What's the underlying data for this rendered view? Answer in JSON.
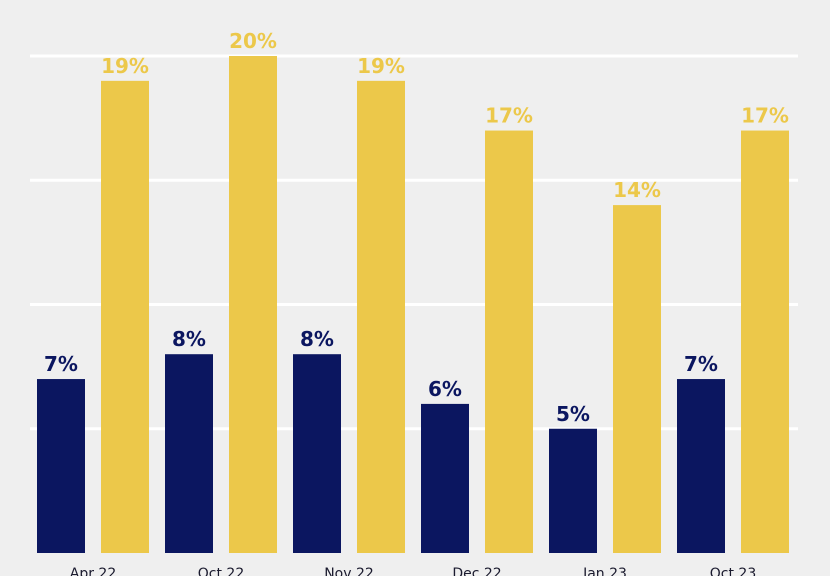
{
  "chart_data": {
    "type": "bar",
    "categories": [
      "Apr 22",
      "Oct 22",
      "Nov 22",
      "Dec 22",
      "Jan 23",
      "Oct 23"
    ],
    "series": [
      {
        "values": [
          7,
          8,
          8,
          6,
          5,
          7
        ],
        "labels": [
          "7%",
          "8%",
          "8%",
          "6%",
          "5%",
          "7%"
        ],
        "color": "#0b1660"
      },
      {
        "values": [
          19,
          20,
          19,
          17,
          14,
          17
        ],
        "labels": [
          "19%",
          "20%",
          "19%",
          "17%",
          "14%",
          "17%"
        ],
        "color": "#ecc84a"
      }
    ],
    "ylim": [
      0,
      20
    ],
    "grid": true,
    "gridlines": [
      5,
      10,
      15,
      20
    ],
    "background": "#efefef",
    "grid_color": "#ffffff"
  }
}
